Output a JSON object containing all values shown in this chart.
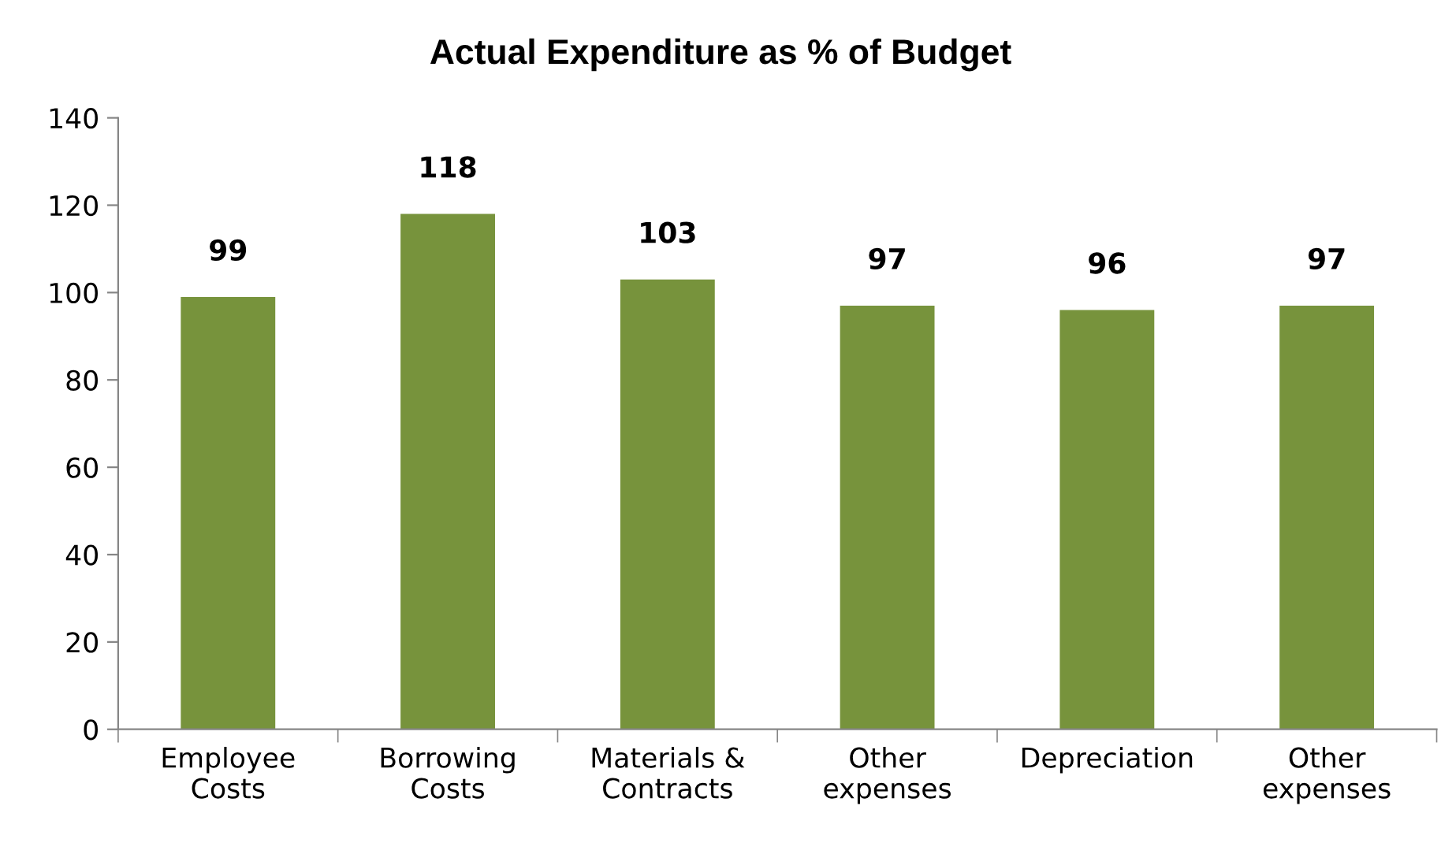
{
  "chart_data": {
    "type": "bar",
    "title": "Actual Expenditure as % of Budget",
    "categories": [
      "Employee\nCosts",
      "Borrowing\nCosts",
      "Materials &\nContracts",
      "Other\nexpenses",
      "Depreciation",
      "Other\nexpenses"
    ],
    "values": [
      99,
      118,
      103,
      97,
      96,
      97
    ],
    "color": "#77933c",
    "ylim": [
      0,
      140
    ],
    "yticks": [
      0,
      20,
      40,
      60,
      80,
      100,
      120,
      140
    ],
    "grid": false,
    "legend": false,
    "data_labels": true
  }
}
